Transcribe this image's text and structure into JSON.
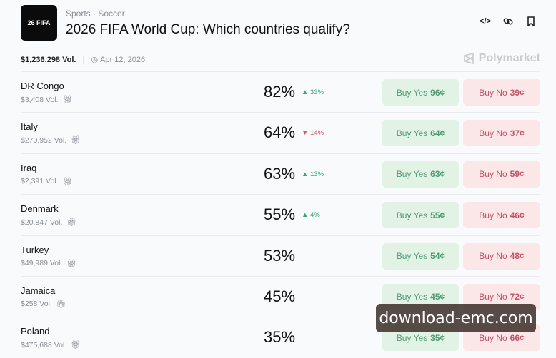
{
  "header": {
    "logo_text": "26 FIFA",
    "breadcrumb": "Sports · Soccer",
    "title": "2026 FIFA World Cup: Which countries qualify?",
    "actions": [
      {
        "icon": "embed-code-icon",
        "glyph": "</>"
      },
      {
        "icon": "link-icon",
        "glyph": "🔗"
      },
      {
        "icon": "bookmark-icon",
        "glyph": "🔖"
      }
    ]
  },
  "meta": {
    "volume": "$1,236,298 Vol.",
    "date": "Apr 12, 2026",
    "brand": "Polymarket"
  },
  "colors": {
    "yes_bg": "#e2f3e6",
    "yes_text": "#4f9c72",
    "no_bg": "#fbe7e7",
    "no_text": "#c25468",
    "up": "#3aa57a",
    "down": "#d0566d"
  },
  "rows": [
    {
      "name": "DR Congo",
      "volume": "$3,408 Vol.",
      "percent": "82%",
      "change": "▲ 33%",
      "direction": "up",
      "yes_label": "Buy Yes",
      "yes_price": "96¢",
      "no_label": "Buy No",
      "no_price": "39¢"
    },
    {
      "name": "Italy",
      "volume": "$270,952 Vol.",
      "percent": "64%",
      "change": "▼ 14%",
      "direction": "down",
      "yes_label": "Buy Yes",
      "yes_price": "64¢",
      "no_label": "Buy No",
      "no_price": "37¢"
    },
    {
      "name": "Iraq",
      "volume": "$2,391 Vol.",
      "percent": "63%",
      "change": "▲ 13%",
      "direction": "up",
      "yes_label": "Buy Yes",
      "yes_price": "63¢",
      "no_label": "Buy No",
      "no_price": "59¢"
    },
    {
      "name": "Denmark",
      "volume": "$20,847 Vol.",
      "percent": "55%",
      "change": "▲ 4%",
      "direction": "up",
      "yes_label": "Buy Yes",
      "yes_price": "55¢",
      "no_label": "Buy No",
      "no_price": "46¢"
    },
    {
      "name": "Turkey",
      "volume": "$49,989 Vol.",
      "percent": "53%",
      "change": "",
      "direction": "",
      "yes_label": "Buy Yes",
      "yes_price": "54¢",
      "no_label": "Buy No",
      "no_price": "48¢"
    },
    {
      "name": "Jamaica",
      "volume": "$258 Vol.",
      "percent": "45%",
      "change": "",
      "direction": "",
      "yes_label": "Buy Yes",
      "yes_price": "45¢",
      "no_label": "Buy No",
      "no_price": "72¢"
    },
    {
      "name": "Poland",
      "volume": "$475,688 Vol.",
      "percent": "35%",
      "change": "",
      "direction": "",
      "yes_label": "Buy Yes",
      "yes_price": "35¢",
      "no_label": "Buy No",
      "no_price": "66¢"
    }
  ],
  "watermark": "download-emc.com"
}
